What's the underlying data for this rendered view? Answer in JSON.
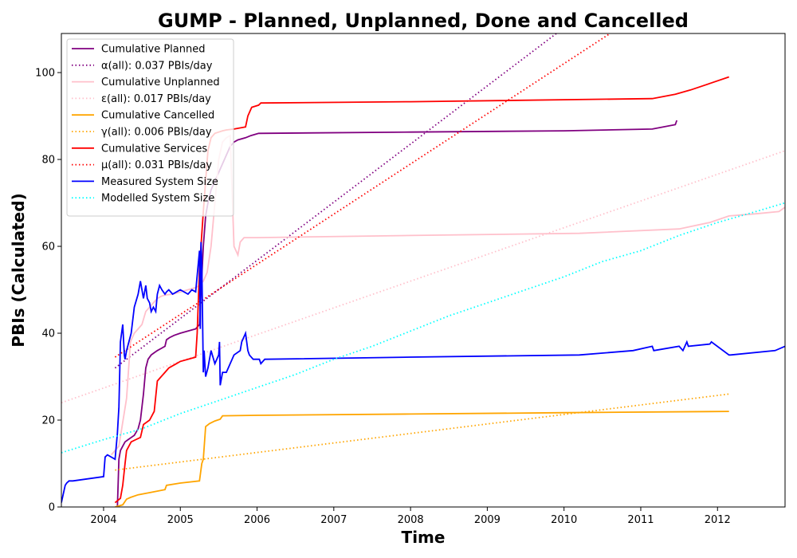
{
  "chart_data": {
    "type": "line",
    "title": "GUMP - Planned, Unplanned, Done  and Cancelled",
    "xlabel": "Time",
    "ylabel": "PBIs (Calculated)",
    "xlim": [
      2003.45,
      2012.88
    ],
    "ylim": [
      0,
      109
    ],
    "x_ticks": [
      2004,
      2005,
      2006,
      2007,
      2008,
      2009,
      2010,
      2011,
      2012
    ],
    "y_ticks": [
      0,
      20,
      40,
      60,
      80,
      100
    ],
    "grid": false,
    "legend_position": "top-left",
    "series": [
      {
        "name": "Cumulative Planned",
        "color": "#800080",
        "style": "solid",
        "x": [
          2004.18,
          2004.2,
          2004.22,
          2004.25,
          2004.28,
          2004.32,
          2004.36,
          2004.4,
          2004.45,
          2004.48,
          2004.52,
          2004.55,
          2004.58,
          2004.62,
          2004.66,
          2004.7,
          2004.75,
          2004.8,
          2004.82,
          2004.86,
          2004.92,
          2005.0,
          2005.1,
          2005.2,
          2005.25,
          2005.26,
          2005.3,
          2005.33,
          2005.36,
          2005.4,
          2005.45,
          2005.5,
          2005.55,
          2005.6,
          2005.65,
          2005.7,
          2005.75,
          2005.85,
          2005.92,
          2006.02,
          2008.0,
          2010.0,
          2011.15,
          2011.45,
          2011.47
        ],
        "y": [
          0,
          11,
          13,
          14,
          15,
          15.5,
          16,
          16.5,
          18,
          20,
          26,
          32,
          34,
          35,
          35.5,
          36,
          36.5,
          37,
          38.5,
          39,
          39.5,
          40,
          40.5,
          41,
          42,
          46,
          60,
          67,
          70,
          73,
          75,
          77,
          79,
          81,
          83,
          84,
          84.5,
          85,
          85.5,
          86,
          86.3,
          86.6,
          87,
          88,
          89
        ]
      },
      {
        "name": "α(all): 0.037 PBIs/day",
        "color": "#800080",
        "style": "dotted",
        "x": [
          2004.15,
          2009.9
        ],
        "y": [
          32,
          109
        ]
      },
      {
        "name": "Cumulative Unplanned",
        "color": "#ffc0cb",
        "style": "solid",
        "x": [
          2004.1,
          2004.2,
          2004.3,
          2004.35,
          2004.4,
          2004.45,
          2004.5,
          2004.55,
          2004.6,
          2004.65,
          2004.7,
          2004.75,
          2004.8,
          2004.9,
          2005.0,
          2005.1,
          2005.2,
          2005.25,
          2005.3,
          2005.35,
          2005.4,
          2005.45,
          2005.5,
          2005.55,
          2005.6,
          2005.65,
          2005.7,
          2005.75,
          2005.78,
          2005.83,
          2005.9,
          2006.0,
          2008.0,
          2010.2,
          2011.5,
          2011.9,
          2012.15,
          2012.5,
          2012.8,
          2012.88
        ],
        "y": [
          12,
          14,
          25,
          38,
          40,
          41,
          42,
          45,
          46,
          47,
          48,
          48.5,
          48.8,
          49,
          49.5,
          50,
          50.5,
          51,
          52,
          54,
          60,
          70,
          80,
          84,
          85,
          85.5,
          60,
          58,
          61,
          62,
          62,
          62,
          62.5,
          63,
          64,
          65.5,
          67,
          67.5,
          68,
          69
        ]
      },
      {
        "name": "ε(all): 0.017 PBIs/day",
        "color": "#ffc0cb",
        "style": "dotted",
        "x": [
          2003.45,
          2012.88
        ],
        "y": [
          24,
          82
        ]
      },
      {
        "name": "Cumulative Cancelled",
        "color": "#ffa500",
        "style": "solid",
        "x": [
          2004.15,
          2004.25,
          2004.3,
          2004.35,
          2004.45,
          2004.6,
          2004.8,
          2004.82,
          2005.0,
          2005.25,
          2005.28,
          2005.3,
          2005.33,
          2005.38,
          2005.45,
          2005.52,
          2005.55,
          2006.0,
          2008.0,
          2010.0,
          2012.15
        ],
        "y": [
          0,
          0.5,
          1.8,
          2.2,
          2.8,
          3.3,
          4,
          5,
          5.5,
          6,
          10,
          11,
          18.5,
          19.2,
          19.8,
          20.2,
          21,
          21.1,
          21.4,
          21.7,
          22
        ]
      },
      {
        "name": "γ(all): 0.006 PBIs/day",
        "color": "#ffa500",
        "style": "dotted",
        "x": [
          2004.15,
          2012.15
        ],
        "y": [
          8.5,
          26
        ]
      },
      {
        "name": "Cumulative Services",
        "color": "#ff0000",
        "style": "solid",
        "x": [
          2004.15,
          2004.22,
          2004.25,
          2004.28,
          2004.3,
          2004.33,
          2004.36,
          2004.42,
          2004.48,
          2004.52,
          2004.6,
          2004.66,
          2004.7,
          2004.75,
          2004.8,
          2004.85,
          2004.95,
          2005.0,
          2005.2,
          2005.22,
          2005.25,
          2005.3,
          2005.33,
          2005.36,
          2005.4,
          2005.45,
          2005.5,
          2005.55,
          2005.6,
          2005.7,
          2005.85,
          2005.88,
          2005.93,
          2006.02,
          2006.05,
          2008.0,
          2011.15,
          2011.45,
          2011.65,
          2011.9,
          2012.15
        ],
        "y": [
          1,
          2,
          5,
          10,
          13,
          14,
          15,
          15.5,
          16,
          19,
          20,
          22,
          29,
          30,
          31,
          32,
          33,
          33.5,
          34.5,
          40,
          55,
          68,
          75,
          82,
          85,
          86,
          86.3,
          86.6,
          86.8,
          87,
          87.5,
          90,
          92,
          92.5,
          93,
          93.3,
          94,
          95,
          96,
          97.5,
          99
        ]
      },
      {
        "name": "μ(all): 0.031 PBIs/day",
        "color": "#ff0000",
        "style": "dotted",
        "x": [
          2004.15,
          2010.6
        ],
        "y": [
          34.5,
          109
        ]
      },
      {
        "name": "Measured System Size",
        "color": "#0000ff",
        "style": "solid",
        "x": [
          2003.45,
          2003.5,
          2003.52,
          2003.55,
          2003.6,
          2004.0,
          2004.02,
          2004.05,
          2004.15,
          2004.18,
          2004.2,
          2004.22,
          2004.25,
          2004.27,
          2004.28,
          2004.3,
          2004.33,
          2004.36,
          2004.4,
          2004.45,
          2004.48,
          2004.52,
          2004.55,
          2004.57,
          2004.6,
          2004.62,
          2004.65,
          2004.68,
          2004.7,
          2004.73,
          2004.76,
          2004.8,
          2004.82,
          2004.85,
          2004.9,
          2005.0,
          2005.1,
          2005.15,
          2005.2,
          2005.25,
          2005.26,
          2005.27,
          2005.28,
          2005.3,
          2005.31,
          2005.33,
          2005.36,
          2005.4,
          2005.45,
          2005.5,
          2005.51,
          2005.52,
          2005.55,
          2005.6,
          2005.7,
          2005.78,
          2005.8,
          2005.85,
          2005.88,
          2005.9,
          2005.95,
          2006.03,
          2006.05,
          2006.1,
          2008.0,
          2010.2,
          2010.9,
          2011.15,
          2011.17,
          2011.5,
          2011.55,
          2011.6,
          2011.62,
          2011.9,
          2011.92,
          2012.15,
          2012.17,
          2012.75,
          2012.88
        ],
        "y": [
          1,
          5,
          5.5,
          6,
          6,
          7,
          11.5,
          12,
          11,
          17,
          23,
          38,
          42,
          35,
          34,
          36,
          38,
          40,
          46,
          49,
          52,
          48,
          51,
          48,
          47,
          45,
          46,
          45,
          49,
          51,
          50,
          49,
          49.5,
          50,
          49,
          50,
          49,
          50,
          49.5,
          59,
          41,
          61,
          56,
          31,
          36,
          30,
          32,
          36,
          33,
          35,
          38,
          28,
          31,
          31,
          35,
          36,
          38,
          40,
          36,
          35,
          34,
          34,
          33,
          34,
          34.5,
          35,
          36,
          37,
          36,
          37,
          36,
          38,
          37,
          37.5,
          38,
          35,
          35,
          36,
          37
        ]
      },
      {
        "name": "Modelled System Size",
        "color": "#00ffff",
        "style": "dotted",
        "x": [
          2003.45,
          2004.0,
          2004.5,
          2005.0,
          2005.5,
          2006.0,
          2006.5,
          2007.0,
          2007.5,
          2008.0,
          2008.5,
          2009.0,
          2009.5,
          2010.0,
          2010.5,
          2011.0,
          2011.5,
          2012.0,
          2012.5,
          2012.88
        ],
        "y": [
          12.5,
          15.5,
          18,
          21.5,
          24.5,
          27.5,
          30.5,
          34,
          37,
          40.5,
          44,
          47,
          50,
          53,
          56.5,
          59,
          62.5,
          65.5,
          68,
          70
        ]
      }
    ]
  }
}
